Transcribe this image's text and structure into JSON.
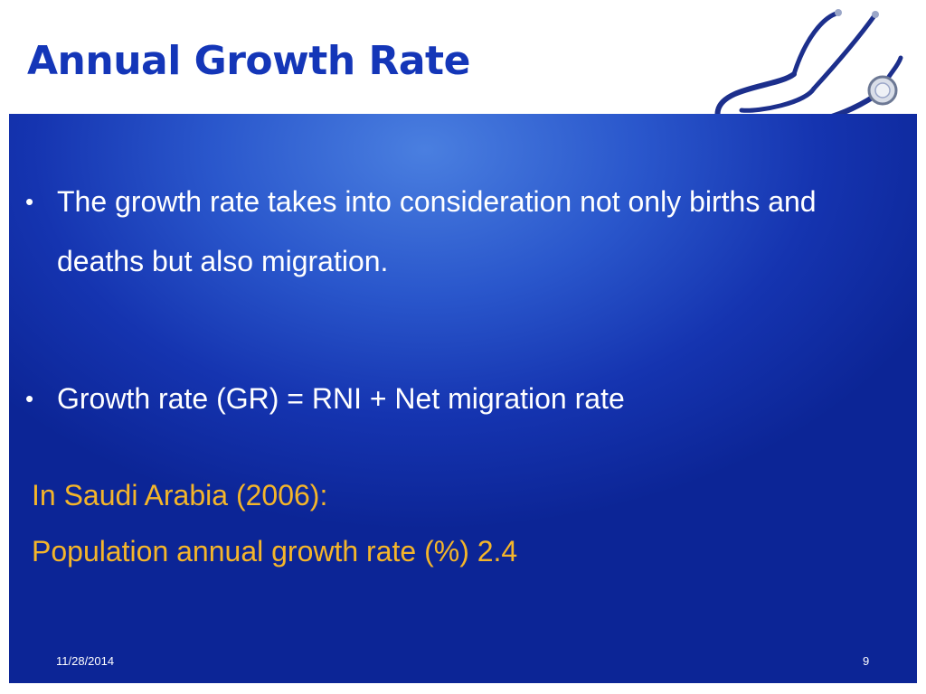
{
  "slide": {
    "title": "Annual Growth Rate",
    "bullets": [
      {
        "marker": "•",
        "text": "The growth rate takes into consideration not only births and deaths but also migration."
      },
      {
        "marker": "•",
        "text": "Growth rate (GR) = RNI + Net migration rate"
      }
    ],
    "notes": [
      "In Saudi Arabia (2006):",
      "Population annual growth rate (%) 2.4"
    ],
    "footer": {
      "date": "11/28/2014",
      "page": "9"
    }
  },
  "decoration": {
    "icon": "stethoscope-icon"
  },
  "colors": {
    "title": "#1436b8",
    "panel": "#1f45c0",
    "body_text": "#ffffff",
    "highlight_text": "#f4b52a"
  }
}
